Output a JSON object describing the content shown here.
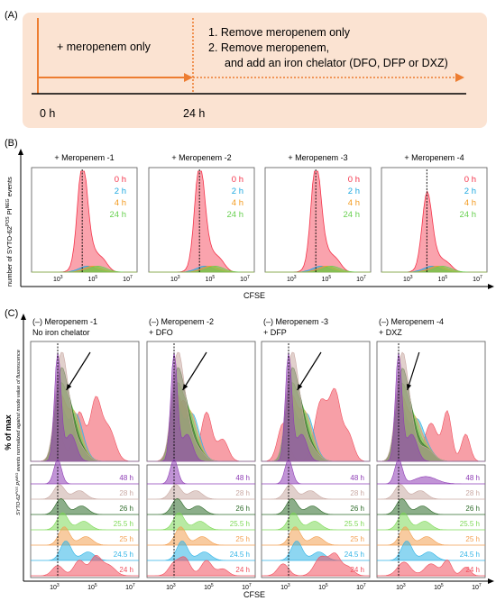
{
  "panelA": {
    "label": "(A)",
    "phase1": "+ meropenem only",
    "step1": "1.  Remove meropenem only",
    "step2a": "2.  Remove meropenem,",
    "step2b": "and add an iron chelator (DFO, DFP or DXZ)",
    "t0": "0 h",
    "t24": "24 h",
    "colors": {
      "box": "#FBE3D2",
      "arrow": "#ED7D31"
    }
  },
  "panelB": {
    "label": "(B)",
    "ylabel_pre": "number of SYTO-62",
    "ylabel_sup1": "POS",
    "ylabel_mid": " PI",
    "ylabel_sup2": "NEG",
    "ylabel_post": " events",
    "xlabel": "CFSE",
    "titles": [
      "+ Meropenem -1",
      "+ Meropenem -2",
      "+ Meropenem -3",
      "+ Meropenem -4"
    ],
    "legend": [
      {
        "text": "0 h",
        "color": "#F4334A"
      },
      {
        "text": "2 h",
        "color": "#1FA9E0"
      },
      {
        "text": "4 h",
        "color": "#F39A1E"
      },
      {
        "text": "24 h",
        "color": "#67D04F"
      }
    ],
    "ticks": [
      {
        "base": "10",
        "exp": "3"
      },
      {
        "base": "10",
        "exp": "5"
      },
      {
        "base": "10",
        "exp": "7"
      }
    ]
  },
  "panelC": {
    "label": "(C)",
    "titles": [
      [
        "(–) Meropenem -1",
        "No iron chelator"
      ],
      [
        "(–) Meropenem -2",
        "+ DFO"
      ],
      [
        "(–) Meropenem -3",
        "+ DFP"
      ],
      [
        "(–) Meropenem -4",
        "+ DXZ"
      ]
    ],
    "ylabel_main": "% of max",
    "ylabel_sub_pre": "SYTO-62",
    "ylabel_sub_sup": "POS",
    "ylabel_sub_mid": " PI",
    "ylabel_sub_sup2": "NEG",
    "ylabel_sub_post": " events normalized against mode value of fluorescence",
    "xlabel": "CFSE",
    "stack": [
      {
        "text": "48 h",
        "color": "#8E3DB5"
      },
      {
        "text": "28 h",
        "color": "#C9A9A3"
      },
      {
        "text": "26 h",
        "color": "#2E6B2A"
      },
      {
        "text": "25.5 h",
        "color": "#7ED957"
      },
      {
        "text": "25 h",
        "color": "#F3A052"
      },
      {
        "text": "24.5 h",
        "color": "#30B4E6"
      },
      {
        "text": "24 h",
        "color": "#F0505E"
      }
    ]
  }
}
